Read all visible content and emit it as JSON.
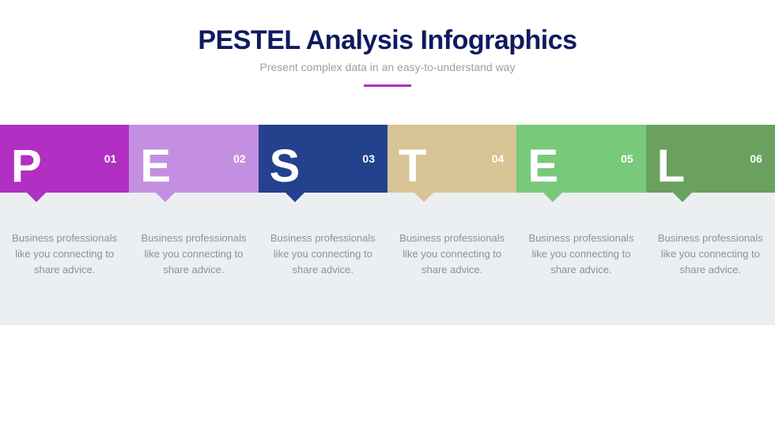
{
  "header": {
    "title": "PESTEL Analysis Infographics",
    "subtitle": "Present complex data in an easy-to-understand way",
    "title_color": "#0f1b5f",
    "subtitle_color": "#9aa0a6",
    "underline_color": "#b12fc2"
  },
  "tiles": [
    {
      "letter": "P",
      "num": "01",
      "color": "#b12fc2",
      "desc": "Business professionals like you connecting to share advice."
    },
    {
      "letter": "E",
      "num": "02",
      "color": "#c48fe0",
      "desc": "Business professionals like you connecting to share advice."
    },
    {
      "letter": "S",
      "num": "03",
      "color": "#24418e",
      "desc": "Business professionals like you connecting to share advice."
    },
    {
      "letter": "T",
      "num": "04",
      "color": "#d8c394",
      "desc": "Business professionals like you connecting to share advice."
    },
    {
      "letter": "E",
      "num": "05",
      "color": "#79c97b",
      "desc": "Business professionals like you connecting to share advice."
    },
    {
      "letter": "L",
      "num": "06",
      "color": "#6aa160",
      "desc": "Business professionals like you connecting to share advice."
    }
  ],
  "desc_text_color": "#8c9197",
  "desc_bg_color": "#eceff2"
}
